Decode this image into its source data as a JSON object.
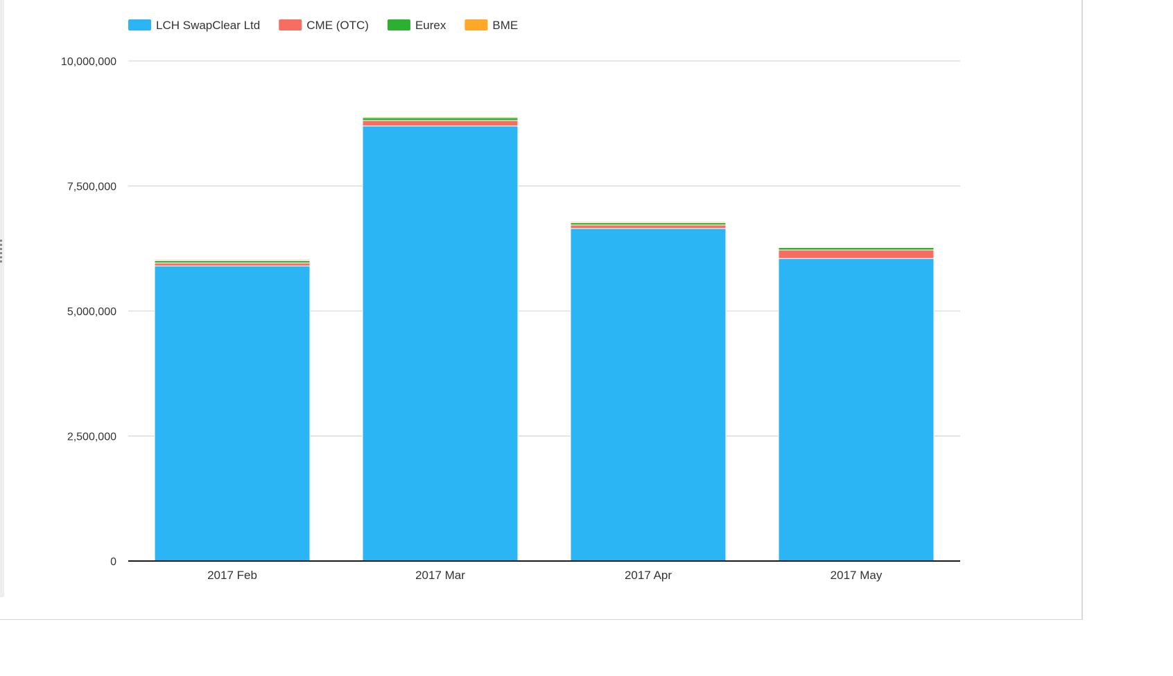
{
  "chart_data": {
    "type": "bar",
    "stacked": true,
    "categories": [
      "2017 Feb",
      "2017 Mar",
      "2017 Apr",
      "2017 May"
    ],
    "series": [
      {
        "name": "LCH SwapClear Ltd",
        "color": "#2bb5f5",
        "values": [
          5900000,
          8700000,
          6650000,
          6050000
        ]
      },
      {
        "name": "CME (OTC)",
        "color": "#f66d62",
        "values": [
          60000,
          110000,
          70000,
          170000
        ]
      },
      {
        "name": "Eurex",
        "color": "#2cb030",
        "values": [
          45000,
          55000,
          45000,
          50000
        ]
      },
      {
        "name": "BME",
        "color": "#ffa726",
        "values": [
          20000,
          20000,
          20000,
          15000
        ]
      }
    ],
    "yticks": [
      "0",
      "2,500,000",
      "5,000,000",
      "7,500,000",
      "10,000,000"
    ],
    "ylim": [
      0,
      10000000
    ],
    "grid": true,
    "legend_position": "top-left"
  }
}
